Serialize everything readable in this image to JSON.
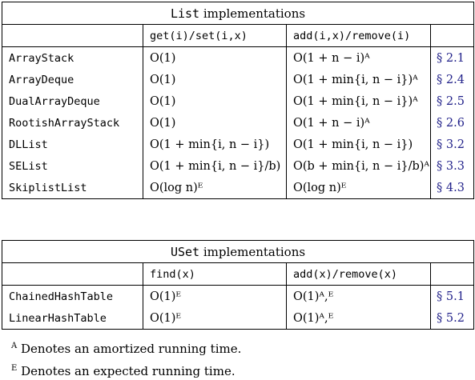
{
  "list_table": {
    "title_prefix": "List",
    "title_rest": " implementations",
    "headers": [
      "",
      "get(i)/set(i,x)",
      "add(i,x)/remove(i)",
      ""
    ],
    "rows": [
      {
        "name": "ArrayStack",
        "get": "O(1)",
        "add": "O(1 + n − i)ᴬ",
        "ref": "§ 2.1"
      },
      {
        "name": "ArrayDeque",
        "get": "O(1)",
        "add": "O(1 + min{i, n − i})ᴬ",
        "ref": "§ 2.4"
      },
      {
        "name": "DualArrayDeque",
        "get": "O(1)",
        "add": "O(1 + min{i, n − i})ᴬ",
        "ref": "§ 2.5"
      },
      {
        "name": "RootishArrayStack",
        "get": "O(1)",
        "add": "O(1 + n − i)ᴬ",
        "ref": "§ 2.6"
      },
      {
        "name": "DLList",
        "get": "O(1 + min{i, n − i})",
        "add": "O(1 + min{i, n − i})",
        "ref": "§ 3.2"
      },
      {
        "name": "SEList",
        "get": "O(1 + min{i, n − i}/b)",
        "add": "O(b + min{i, n − i}/b)ᴬ",
        "ref": "§ 3.3"
      },
      {
        "name": "SkiplistList",
        "get": "O(log n)ᴱ",
        "add": "O(log n)ᴱ",
        "ref": "§ 4.3"
      }
    ]
  },
  "uset_table": {
    "title_prefix": "USet",
    "title_rest": " implementations",
    "headers": [
      "",
      "find(x)",
      "add(x)/remove(x)",
      ""
    ],
    "rows": [
      {
        "name": "ChainedHashTable",
        "find": "O(1)ᴱ",
        "add": "O(1)ᴬ,ᴱ",
        "ref": "§ 5.1"
      },
      {
        "name": "LinearHashTable",
        "find": "O(1)ᴱ",
        "add": "O(1)ᴬ,ᴱ",
        "ref": "§ 5.2"
      }
    ]
  },
  "footnotes": {
    "a_mark": "A",
    "a_text": "Denotes an amortized running time.",
    "e_mark": "E",
    "e_text": "Denotes an expected running time."
  },
  "colors": {
    "ref_link": "#22228a"
  }
}
